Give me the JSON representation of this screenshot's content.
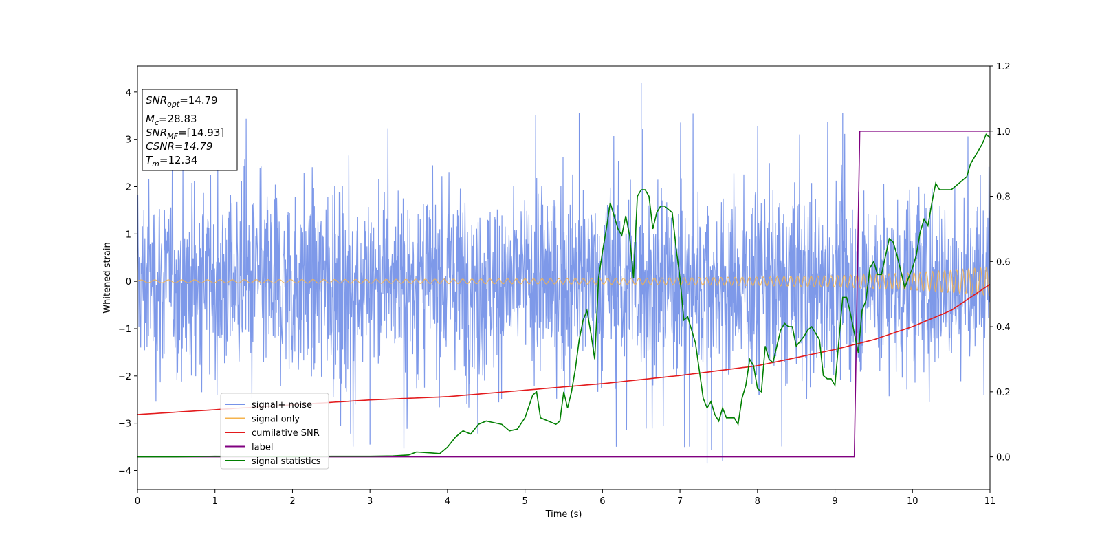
{
  "chart_data": {
    "type": "line",
    "xlabel": "Time (s)",
    "ylabel": "Whitened strain",
    "xlim": [
      0,
      11
    ],
    "ylim": [
      -4.4,
      4.55
    ],
    "ylim_right": [
      -0.1,
      1.2
    ],
    "grid": false,
    "legend_placement": "lower-left",
    "x_ticks": [
      "0",
      "1",
      "2",
      "3",
      "4",
      "5",
      "6",
      "7",
      "8",
      "9",
      "10",
      "11"
    ],
    "y_ticks_left": [
      "−4",
      "−3",
      "−2",
      "−1",
      "0",
      "1",
      "2",
      "3",
      "4"
    ],
    "y_ticks_right": [
      "0.0",
      "0.2",
      "0.4",
      "0.6",
      "0.8",
      "1.0",
      "1.2"
    ],
    "legend": [
      {
        "label": "signal+ noise",
        "color": "#7793e8"
      },
      {
        "label": "signal only",
        "color": "#f5b34d"
      },
      {
        "label": "cumilative SNR",
        "color": "#e31a1c"
      },
      {
        "label": "label",
        "color": "#800080"
      },
      {
        "label": "signal statistics",
        "color": "#007f00"
      }
    ],
    "annotations": {
      "snr_opt": {
        "base": "SNR",
        "sub": "opt",
        "value": "=14.79"
      },
      "mc": {
        "base": "M",
        "sub": "c",
        "value": "=28.83"
      },
      "snr_mf": {
        "base": "SNR",
        "sub": "MF",
        "value": "=[14.93]"
      },
      "csnr": {
        "text": "CSNR=14.79"
      },
      "tm": {
        "base": "T",
        "sub": "m",
        "value": "=12.34"
      }
    },
    "series": [
      {
        "name": "signal+ noise",
        "axis": "left",
        "description_values": "noisy strain band roughly between -2.7 and 2.7 with peaks to ±4",
        "band_low": -2.7,
        "band_high": 2.7,
        "peak_max": 4.2,
        "peak_min": -3.85
      },
      {
        "name": "signal only",
        "axis": "left",
        "envelope": {
          "x": [
            0,
            3,
            6,
            8,
            9,
            10,
            11
          ],
          "amp": [
            0.03,
            0.04,
            0.06,
            0.09,
            0.12,
            0.18,
            0.3
          ]
        }
      },
      {
        "name": "cumilative SNR",
        "axis": "right",
        "x": [
          0,
          1,
          2,
          3,
          4,
          5,
          6,
          7,
          8,
          9,
          9.5,
          10,
          10.5,
          11
        ],
        "y": [
          0.13,
          0.145,
          0.16,
          0.175,
          0.185,
          0.205,
          0.225,
          0.25,
          0.28,
          0.33,
          0.36,
          0.4,
          0.45,
          0.53
        ]
      },
      {
        "name": "label",
        "axis": "right",
        "x": [
          0,
          9.25,
          9.32,
          11
        ],
        "y": [
          0.0,
          0.0,
          1.0,
          1.0
        ]
      },
      {
        "name": "signal statistics",
        "axis": "right",
        "x": [
          0,
          0.5,
          1.0,
          1.5,
          2.0,
          2.5,
          3.0,
          3.3,
          3.5,
          3.6,
          3.8,
          3.9,
          4.0,
          4.1,
          4.15,
          4.2,
          4.3,
          4.4,
          4.5,
          4.6,
          4.7,
          4.8,
          4.9,
          5.0,
          5.1,
          5.15,
          5.2,
          5.3,
          5.4,
          5.45,
          5.5,
          5.55,
          5.6,
          5.65,
          5.7,
          5.75,
          5.8,
          5.85,
          5.9,
          5.95,
          6.0,
          6.05,
          6.1,
          6.2,
          6.25,
          6.3,
          6.35,
          6.4,
          6.45,
          6.5,
          6.55,
          6.6,
          6.65,
          6.7,
          6.75,
          6.8,
          6.9,
          6.95,
          7.0,
          7.05,
          7.1,
          7.15,
          7.2,
          7.3,
          7.35,
          7.4,
          7.45,
          7.5,
          7.55,
          7.6,
          7.7,
          7.75,
          7.8,
          7.85,
          7.9,
          7.95,
          8.0,
          8.05,
          8.1,
          8.15,
          8.2,
          8.3,
          8.35,
          8.4,
          8.45,
          8.5,
          8.6,
          8.65,
          8.7,
          8.8,
          8.85,
          8.9,
          8.95,
          9.0,
          9.1,
          9.15,
          9.2,
          9.25,
          9.3,
          9.35,
          9.4,
          9.45,
          9.5,
          9.55,
          9.6,
          9.7,
          9.75,
          9.8,
          9.9,
          10.0,
          10.05,
          10.1,
          10.15,
          10.2,
          10.25,
          10.3,
          10.35,
          10.4,
          10.5,
          10.6,
          10.7,
          10.75,
          10.8,
          10.9,
          10.95,
          11.0
        ],
        "y": [
          0.0,
          0.0,
          0.002,
          0.001,
          0.0,
          0.002,
          0.002,
          0.003,
          0.006,
          0.015,
          0.012,
          0.01,
          0.03,
          0.06,
          0.07,
          0.08,
          0.07,
          0.1,
          0.11,
          0.105,
          0.1,
          0.08,
          0.085,
          0.12,
          0.19,
          0.2,
          0.12,
          0.11,
          0.1,
          0.11,
          0.2,
          0.15,
          0.2,
          0.27,
          0.36,
          0.42,
          0.45,
          0.38,
          0.3,
          0.55,
          0.63,
          0.7,
          0.78,
          0.7,
          0.68,
          0.74,
          0.68,
          0.55,
          0.8,
          0.82,
          0.82,
          0.8,
          0.7,
          0.75,
          0.77,
          0.77,
          0.75,
          0.64,
          0.55,
          0.42,
          0.43,
          0.39,
          0.35,
          0.18,
          0.15,
          0.17,
          0.13,
          0.11,
          0.15,
          0.12,
          0.12,
          0.1,
          0.18,
          0.22,
          0.3,
          0.28,
          0.21,
          0.2,
          0.34,
          0.3,
          0.29,
          0.39,
          0.41,
          0.4,
          0.4,
          0.34,
          0.37,
          0.39,
          0.4,
          0.36,
          0.25,
          0.24,
          0.24,
          0.22,
          0.49,
          0.49,
          0.44,
          0.38,
          0.32,
          0.45,
          0.48,
          0.58,
          0.6,
          0.56,
          0.56,
          0.67,
          0.66,
          0.62,
          0.52,
          0.58,
          0.62,
          0.69,
          0.73,
          0.71,
          0.78,
          0.84,
          0.82,
          0.82,
          0.82,
          0.84,
          0.86,
          0.9,
          0.92,
          0.96,
          0.99,
          0.98
        ]
      }
    ]
  }
}
